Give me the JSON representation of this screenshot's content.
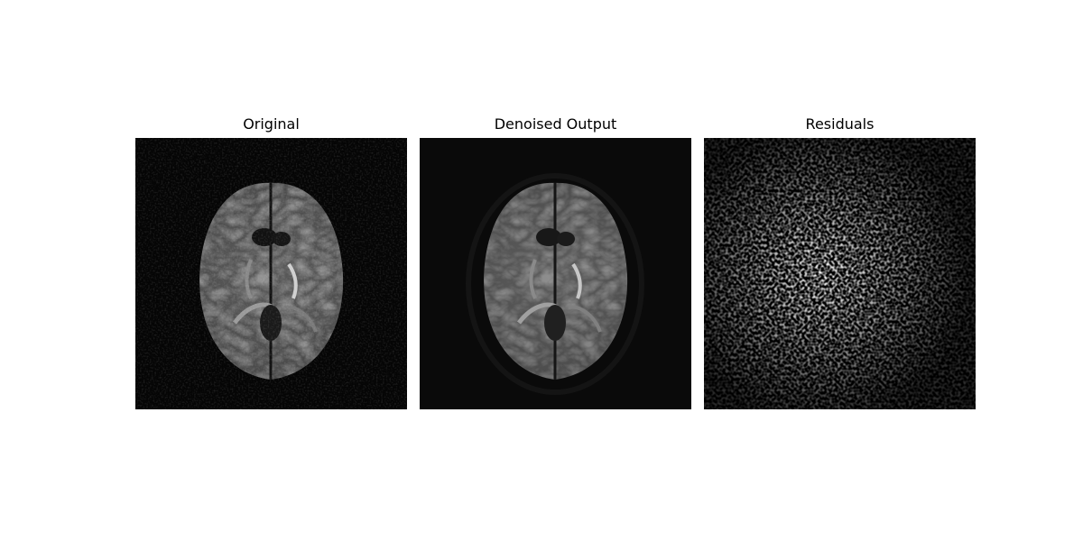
{
  "figure": {
    "panels": [
      {
        "id": "original",
        "title": "Original"
      },
      {
        "id": "denoised",
        "title": "Denoised Output"
      },
      {
        "id": "residuals",
        "title": "Residuals"
      }
    ]
  }
}
